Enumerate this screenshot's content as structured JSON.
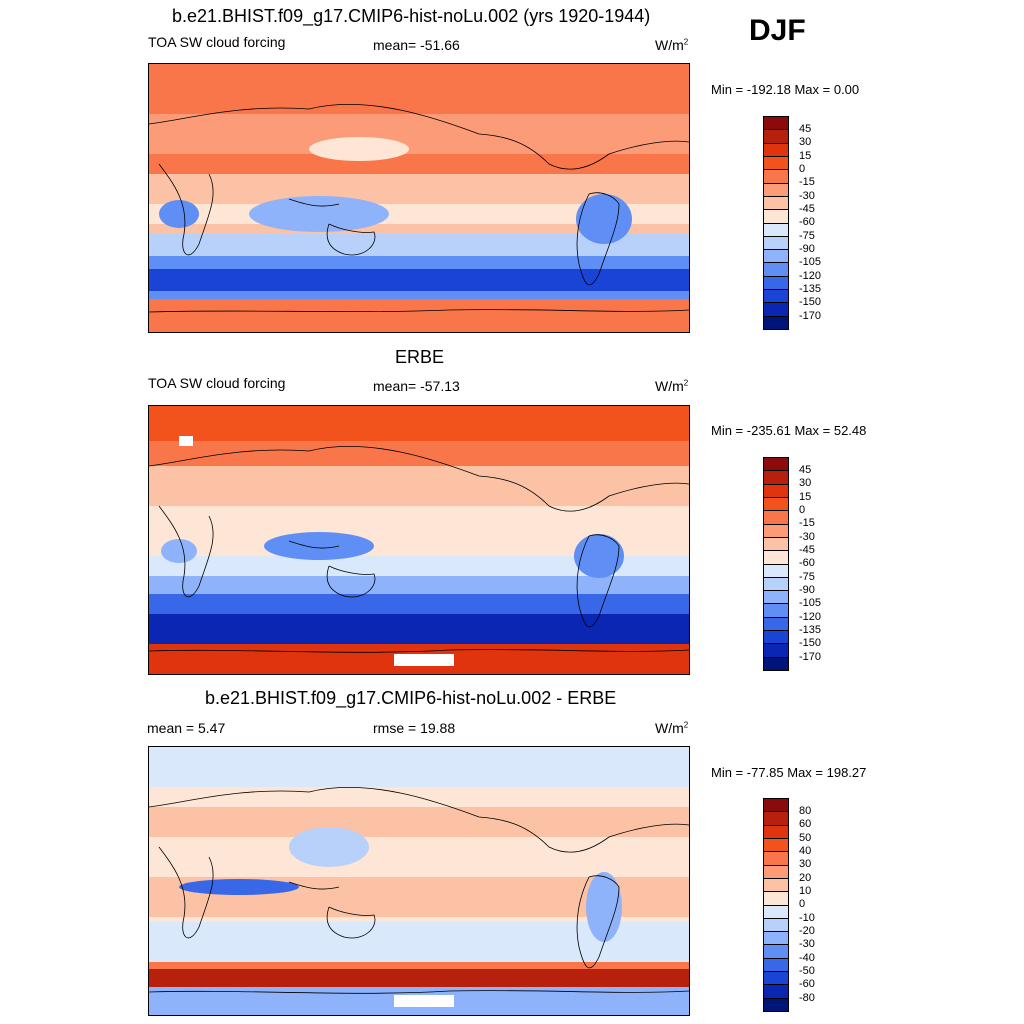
{
  "season": "DJF",
  "panels": [
    {
      "title": "b.e21.BHIST.f09_g17.CMIP6-hist-noLu.002 (yrs 1920-1944)",
      "left_label": "TOA SW cloud forcing",
      "center_label": "mean= -51.66",
      "units": "W/m",
      "units_sup": "2",
      "minmax": "Min = -192.18 Max =   0.00",
      "colorbar_labels": [
        "45",
        "30",
        "15",
        "0",
        "-15",
        "-30",
        "-45",
        "-60",
        "-75",
        "-90",
        "-105",
        "-120",
        "-135",
        "-150",
        "-170"
      ]
    },
    {
      "title": "ERBE",
      "left_label": "TOA SW cloud forcing",
      "center_label": "mean= -57.13",
      "units": "W/m",
      "units_sup": "2",
      "minmax": "Min = -235.61 Max =  52.48",
      "colorbar_labels": [
        "45",
        "30",
        "15",
        "0",
        "-15",
        "-30",
        "-45",
        "-60",
        "-75",
        "-90",
        "-105",
        "-120",
        "-135",
        "-150",
        "-170"
      ]
    },
    {
      "title": "b.e21.BHIST.f09_g17.CMIP6-hist-noLu.002 - ERBE",
      "left_label": "mean =   5.47",
      "center_label": "rmse =  19.88",
      "units": "W/m",
      "units_sup": "2",
      "minmax": "Min = -77.85 Max = 198.27",
      "colorbar_labels": [
        "80",
        "60",
        "50",
        "40",
        "30",
        "20",
        "10",
        "0",
        "-10",
        "-20",
        "-30",
        "-40",
        "-50",
        "-60",
        "-80"
      ]
    }
  ],
  "colors": {
    "scale": [
      "#8b0a0a",
      "#b8200e",
      "#e0340f",
      "#f2521c",
      "#f8764a",
      "#fb9b78",
      "#fcc2a5",
      "#fde6d6",
      "#d9e8fb",
      "#b8d1fb",
      "#8fb3fb",
      "#5f8ff4",
      "#3868e8",
      "#1a44d6",
      "#0a26b3",
      "#00157a"
    ],
    "ocean_bg": "#ffffff",
    "coast": "#000000"
  }
}
